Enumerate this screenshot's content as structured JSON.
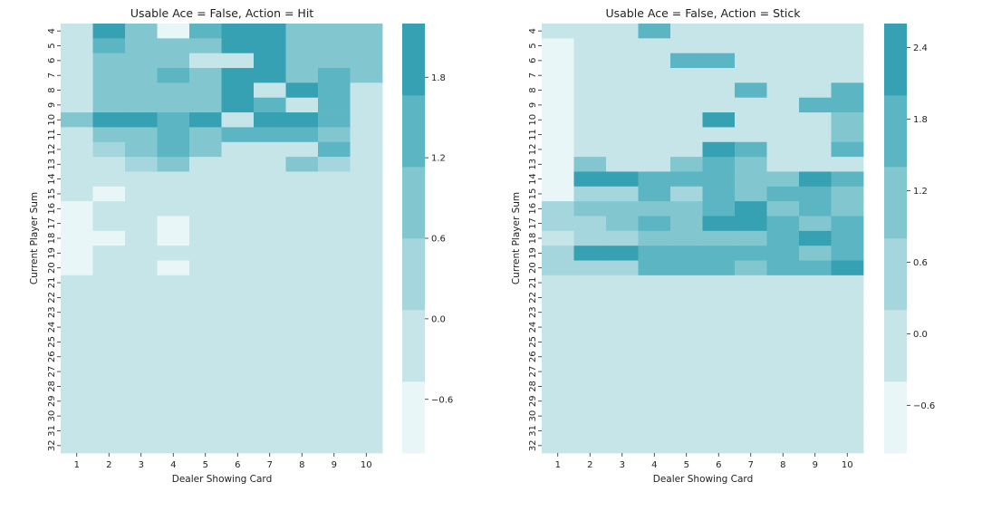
{
  "chart_data": [
    {
      "type": "heatmap",
      "title": "Usable Ace = False, Action = Hit",
      "xlabel": "Dealer Showing Card",
      "ylabel": "Current Player Sum",
      "x_categories": [
        "1",
        "2",
        "3",
        "4",
        "5",
        "6",
        "7",
        "8",
        "9",
        "10"
      ],
      "y_categories": [
        "4",
        "5",
        "6",
        "7",
        "8",
        "9",
        "10",
        "11",
        "12",
        "13",
        "14",
        "15",
        "16",
        "17",
        "18",
        "19",
        "20",
        "21",
        "22",
        "23",
        "24",
        "25",
        "26",
        "27",
        "28",
        "29",
        "30",
        "31",
        "32"
      ],
      "colorbar": {
        "ticks": [
          1.8,
          1.2,
          0.6,
          0.0,
          -0.6
        ],
        "tick_labels": [
          "1.8",
          "1.2",
          "0.6",
          "0.0",
          "−0.6"
        ],
        "levels": 6,
        "range": [
          -1.0,
          2.2
        ]
      },
      "colors": [
        "#e8f6f7",
        "#c6e5e9",
        "#a5d6de",
        "#82c7d0",
        "#5cb5c3",
        "#35a1b2"
      ],
      "values": [
        [
          0.0,
          2.0,
          1.0,
          -0.5,
          1.5,
          2.0,
          2.0,
          1.0,
          1.0,
          1.0
        ],
        [
          0.0,
          1.5,
          1.0,
          1.0,
          1.0,
          2.0,
          2.0,
          1.0,
          1.0,
          1.0
        ],
        [
          0.0,
          1.0,
          1.0,
          1.0,
          0.0,
          0.0,
          2.0,
          1.0,
          1.0,
          1.0
        ],
        [
          0.0,
          1.0,
          1.0,
          1.5,
          1.0,
          2.0,
          2.0,
          1.0,
          1.5,
          1.0
        ],
        [
          0.0,
          1.0,
          1.0,
          1.0,
          1.0,
          2.0,
          0.0,
          2.0,
          1.5,
          0.0
        ],
        [
          0.0,
          1.0,
          1.0,
          1.0,
          1.0,
          2.0,
          1.5,
          0.0,
          1.5,
          0.0
        ],
        [
          1.0,
          2.0,
          2.0,
          1.5,
          2.0,
          0.0,
          2.0,
          2.0,
          1.5,
          0.0
        ],
        [
          0.0,
          1.0,
          1.0,
          1.5,
          1.0,
          1.5,
          1.5,
          1.5,
          1.0,
          0.0
        ],
        [
          0.0,
          0.5,
          1.0,
          1.5,
          1.0,
          0.0,
          0.0,
          0.0,
          1.5,
          0.0
        ],
        [
          0.0,
          0.0,
          0.5,
          1.0,
          0.0,
          0.0,
          0.0,
          1.0,
          0.5,
          0.0
        ],
        [
          0.0,
          0.0,
          0.0,
          0.0,
          0.0,
          0.0,
          0.0,
          0.0,
          0.0,
          0.0
        ],
        [
          0.0,
          -0.5,
          0.0,
          0.0,
          0.0,
          0.0,
          0.0,
          0.0,
          0.0,
          0.0
        ],
        [
          -0.5,
          0.0,
          0.0,
          0.0,
          0.0,
          0.0,
          0.0,
          0.0,
          0.0,
          0.0
        ],
        [
          -0.5,
          0.0,
          0.0,
          -0.5,
          0.0,
          0.0,
          0.0,
          0.0,
          0.0,
          0.0
        ],
        [
          -0.5,
          -0.5,
          0.0,
          -0.5,
          0.0,
          0.0,
          0.0,
          0.0,
          0.0,
          0.0
        ],
        [
          -0.5,
          0.0,
          0.0,
          0.0,
          0.0,
          0.0,
          0.0,
          0.0,
          0.0,
          0.0
        ],
        [
          -0.5,
          0.0,
          0.0,
          -0.5,
          0.0,
          0.0,
          0.0,
          0.0,
          0.0,
          0.0
        ],
        [
          0.0,
          0.0,
          0.0,
          0.0,
          0.0,
          0.0,
          0.0,
          0.0,
          0.0,
          0.0
        ],
        [
          0.0,
          0.0,
          0.0,
          0.0,
          0.0,
          0.0,
          0.0,
          0.0,
          0.0,
          0.0
        ],
        [
          0.0,
          0.0,
          0.0,
          0.0,
          0.0,
          0.0,
          0.0,
          0.0,
          0.0,
          0.0
        ],
        [
          0.0,
          0.0,
          0.0,
          0.0,
          0.0,
          0.0,
          0.0,
          0.0,
          0.0,
          0.0
        ],
        [
          0.0,
          0.0,
          0.0,
          0.0,
          0.0,
          0.0,
          0.0,
          0.0,
          0.0,
          0.0
        ],
        [
          0.0,
          0.0,
          0.0,
          0.0,
          0.0,
          0.0,
          0.0,
          0.0,
          0.0,
          0.0
        ],
        [
          0.0,
          0.0,
          0.0,
          0.0,
          0.0,
          0.0,
          0.0,
          0.0,
          0.0,
          0.0
        ],
        [
          0.0,
          0.0,
          0.0,
          0.0,
          0.0,
          0.0,
          0.0,
          0.0,
          0.0,
          0.0
        ],
        [
          0.0,
          0.0,
          0.0,
          0.0,
          0.0,
          0.0,
          0.0,
          0.0,
          0.0,
          0.0
        ],
        [
          0.0,
          0.0,
          0.0,
          0.0,
          0.0,
          0.0,
          0.0,
          0.0,
          0.0,
          0.0
        ],
        [
          0.0,
          0.0,
          0.0,
          0.0,
          0.0,
          0.0,
          0.0,
          0.0,
          0.0,
          0.0
        ],
        [
          0.0,
          0.0,
          0.0,
          0.0,
          0.0,
          0.0,
          0.0,
          0.0,
          0.0,
          0.0
        ]
      ]
    },
    {
      "type": "heatmap",
      "title": "Usable Ace = False, Action = Stick",
      "xlabel": "Dealer Showing Card",
      "ylabel": "Current Player Sum",
      "x_categories": [
        "1",
        "2",
        "3",
        "4",
        "5",
        "6",
        "7",
        "8",
        "9",
        "10"
      ],
      "y_categories": [
        "4",
        "5",
        "6",
        "7",
        "8",
        "9",
        "10",
        "11",
        "12",
        "13",
        "14",
        "15",
        "16",
        "17",
        "18",
        "19",
        "20",
        "21",
        "22",
        "23",
        "24",
        "25",
        "26",
        "27",
        "28",
        "29",
        "30",
        "31",
        "32"
      ],
      "colorbar": {
        "ticks": [
          2.4,
          1.8,
          1.2,
          0.6,
          0.0,
          -0.6
        ],
        "tick_labels": [
          "2.4",
          "1.8",
          "1.2",
          "0.6",
          "0.0",
          "−0.6"
        ],
        "levels": 6,
        "range": [
          -1.0,
          2.6
        ]
      },
      "colors": [
        "#e8f6f7",
        "#c6e5e9",
        "#a5d6de",
        "#82c7d0",
        "#5cb5c3",
        "#35a1b2"
      ],
      "values": [
        [
          0.0,
          0.0,
          0.0,
          1.5,
          0.0,
          0.0,
          0.0,
          0.0,
          0.0,
          0.0
        ],
        [
          -0.5,
          0.0,
          0.0,
          0.0,
          0.0,
          0.0,
          0.0,
          0.0,
          0.0,
          0.0
        ],
        [
          -0.5,
          0.0,
          0.0,
          0.0,
          1.5,
          1.5,
          0.0,
          0.0,
          0.0,
          0.0
        ],
        [
          -0.5,
          0.0,
          0.0,
          0.0,
          0.0,
          0.0,
          0.0,
          0.0,
          0.0,
          0.0
        ],
        [
          -0.5,
          0.0,
          0.0,
          0.0,
          0.0,
          0.0,
          1.5,
          0.0,
          0.0,
          1.5
        ],
        [
          -0.5,
          0.0,
          0.0,
          0.0,
          0.0,
          0.0,
          0.0,
          0.0,
          1.5,
          1.5
        ],
        [
          -0.5,
          0.0,
          0.0,
          0.0,
          0.0,
          2.0,
          0.0,
          0.0,
          0.0,
          1.0
        ],
        [
          -0.5,
          0.0,
          0.0,
          0.0,
          0.0,
          0.0,
          0.0,
          0.0,
          0.0,
          1.0
        ],
        [
          -0.5,
          0.0,
          0.0,
          0.0,
          0.0,
          2.0,
          1.5,
          0.0,
          0.0,
          1.5
        ],
        [
          -0.5,
          1.0,
          0.0,
          0.0,
          1.0,
          1.5,
          1.0,
          0.0,
          0.0,
          0.0
        ],
        [
          -0.5,
          2.0,
          2.0,
          1.5,
          1.5,
          1.5,
          1.0,
          1.0,
          2.0,
          1.5
        ],
        [
          -0.5,
          0.5,
          0.5,
          1.5,
          0.5,
          1.5,
          1.0,
          1.5,
          1.5,
          1.0
        ],
        [
          0.5,
          1.0,
          1.0,
          1.0,
          1.0,
          1.5,
          2.0,
          1.0,
          1.5,
          1.0
        ],
        [
          0.5,
          0.5,
          1.0,
          1.5,
          1.0,
          2.0,
          2.0,
          1.5,
          1.0,
          1.5
        ],
        [
          0.0,
          0.5,
          0.5,
          1.0,
          1.0,
          1.0,
          1.0,
          1.5,
          2.0,
          1.5
        ],
        [
          0.5,
          2.0,
          2.0,
          1.5,
          1.5,
          1.5,
          1.5,
          1.5,
          1.0,
          1.5
        ],
        [
          0.5,
          0.5,
          0.5,
          1.5,
          1.5,
          1.5,
          1.0,
          1.5,
          1.5,
          2.0
        ],
        [
          0.0,
          0.0,
          0.0,
          0.0,
          0.0,
          0.0,
          0.0,
          0.0,
          0.0,
          0.0
        ],
        [
          0.0,
          0.0,
          0.0,
          0.0,
          0.0,
          0.0,
          0.0,
          0.0,
          0.0,
          0.0
        ],
        [
          0.0,
          0.0,
          0.0,
          0.0,
          0.0,
          0.0,
          0.0,
          0.0,
          0.0,
          0.0
        ],
        [
          0.0,
          0.0,
          0.0,
          0.0,
          0.0,
          0.0,
          0.0,
          0.0,
          0.0,
          0.0
        ],
        [
          0.0,
          0.0,
          0.0,
          0.0,
          0.0,
          0.0,
          0.0,
          0.0,
          0.0,
          0.0
        ],
        [
          0.0,
          0.0,
          0.0,
          0.0,
          0.0,
          0.0,
          0.0,
          0.0,
          0.0,
          0.0
        ],
        [
          0.0,
          0.0,
          0.0,
          0.0,
          0.0,
          0.0,
          0.0,
          0.0,
          0.0,
          0.0
        ],
        [
          0.0,
          0.0,
          0.0,
          0.0,
          0.0,
          0.0,
          0.0,
          0.0,
          0.0,
          0.0
        ],
        [
          0.0,
          0.0,
          0.0,
          0.0,
          0.0,
          0.0,
          0.0,
          0.0,
          0.0,
          0.0
        ],
        [
          0.0,
          0.0,
          0.0,
          0.0,
          0.0,
          0.0,
          0.0,
          0.0,
          0.0,
          0.0
        ],
        [
          0.0,
          0.0,
          0.0,
          0.0,
          0.0,
          0.0,
          0.0,
          0.0,
          0.0,
          0.0
        ],
        [
          0.0,
          0.0,
          0.0,
          0.0,
          0.0,
          0.0,
          0.0,
          0.0,
          0.0,
          0.0
        ]
      ]
    }
  ]
}
